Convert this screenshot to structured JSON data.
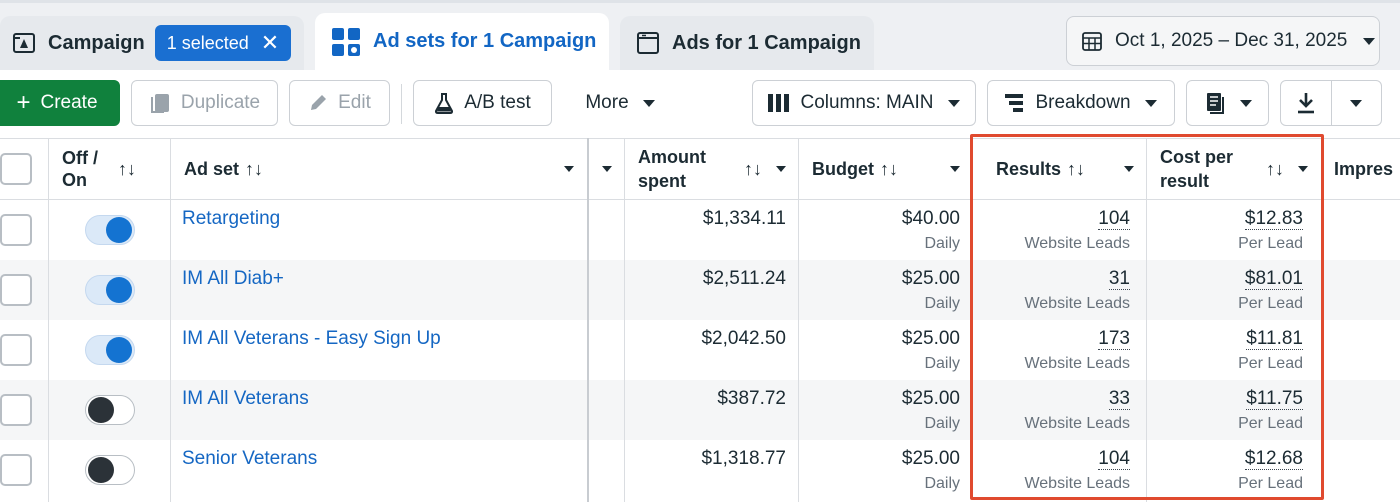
{
  "tabs": {
    "campaign_label": "Campaign",
    "selected_badge": "1 selected",
    "close_glyph": "✕",
    "adsets_label": "Ad sets for 1 Campaign",
    "ads_label": "Ads for 1 Campaign"
  },
  "date_range": "Oct 1, 2025 – Dec 31, 2025",
  "toolbar": {
    "create": "Create",
    "duplicate": "Duplicate",
    "edit": "Edit",
    "ab_test": "A/B test",
    "more": "More",
    "columns": "Columns: MAIN",
    "breakdown": "Breakdown"
  },
  "columns": {
    "off_on": "Off / On",
    "ad_set": "Ad set",
    "amount_spent": "Amount spent",
    "budget": "Budget",
    "results": "Results",
    "cost_per_result": "Cost per result",
    "impressions_partial": "Impres",
    "sort_glyph": "↑↓"
  },
  "rows": [
    {
      "on": true,
      "name": "Retargeting",
      "amount": "$1,334.11",
      "budget": "$40.00",
      "budget_period": "Daily",
      "results": "104",
      "results_type": "Website Leads",
      "cost": "$12.83",
      "cost_unit": "Per Lead"
    },
    {
      "on": true,
      "name": "IM All Diab+",
      "amount": "$2,511.24",
      "budget": "$25.00",
      "budget_period": "Daily",
      "results": "31",
      "results_type": "Website Leads",
      "cost": "$81.01",
      "cost_unit": "Per Lead"
    },
    {
      "on": true,
      "name": "IM All Veterans - Easy Sign Up",
      "amount": "$2,042.50",
      "budget": "$25.00",
      "budget_period": "Daily",
      "results": "173",
      "results_type": "Website Leads",
      "cost": "$11.81",
      "cost_unit": "Per Lead"
    },
    {
      "on": false,
      "name": "IM All Veterans",
      "amount": "$387.72",
      "budget": "$25.00",
      "budget_period": "Daily",
      "results": "33",
      "results_type": "Website Leads",
      "cost": "$11.75",
      "cost_unit": "Per Lead"
    },
    {
      "on": false,
      "name": "Senior Veterans",
      "amount": "$1,318.77",
      "budget": "$25.00",
      "budget_period": "Daily",
      "results": "104",
      "results_type": "Website Leads",
      "cost": "$12.68",
      "cost_unit": "Per Lead"
    }
  ],
  "colors": {
    "accent_blue": "#1a6fd1",
    "create_green": "#10813d",
    "highlight_red": "#e04a2f",
    "link_blue": "#1567c3"
  },
  "icons": [
    "campaign-icon",
    "adsets-grid-icon",
    "ads-icon",
    "calendar-icon",
    "duplicate-icon",
    "pencil-icon",
    "flask-icon",
    "columns-icon",
    "breakdown-icon",
    "reports-icon",
    "download-icon"
  ]
}
